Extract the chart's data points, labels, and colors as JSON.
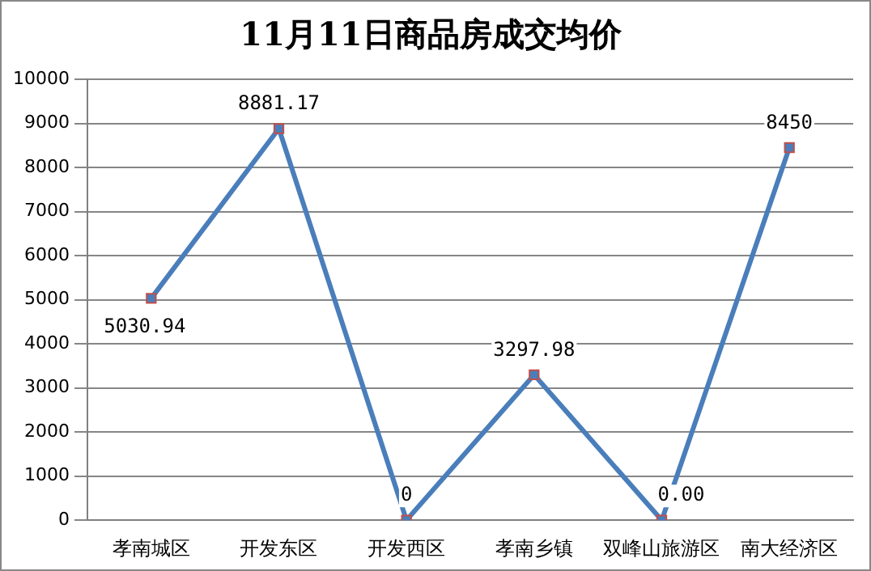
{
  "chart_data": {
    "type": "line",
    "title": "11月11日商品房成交均价",
    "categories": [
      "孝南城区",
      "开发东区",
      "开发西区",
      "孝南乡镇",
      "双峰山旅游区",
      "南大经济区"
    ],
    "series": [
      {
        "color": "#4a7ebb",
        "values": [
          5030.94,
          8881.17,
          0,
          3297.98,
          0,
          8450
        ]
      }
    ],
    "value_labels": [
      "5030.94",
      "8881.17",
      "0",
      "3297.98",
      "0.00",
      "8450"
    ],
    "ylim": [
      0,
      10000
    ],
    "yticks": [
      0,
      1000,
      2000,
      3000,
      4000,
      5000,
      6000,
      7000,
      8000,
      9000,
      10000
    ],
    "grid": "y",
    "legend": false,
    "marker": "square",
    "line_style": "solid"
  }
}
